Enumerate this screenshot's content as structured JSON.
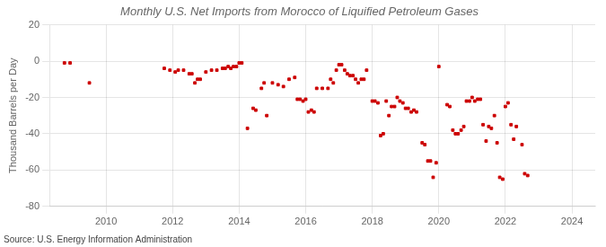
{
  "chart_data": {
    "type": "scatter",
    "title": "Monthly U.S. Net Imports from Morocco of Liquified Petroleum Gases",
    "ylabel": "Thousand Barrels per Day",
    "annotation": "Source: U.S. Energy Information Administration",
    "color": "#cc0000",
    "marker": "square",
    "grid": true,
    "xlim": [
      2008.3,
      2024.7
    ],
    "xticks": [
      2010,
      2012,
      2014,
      2016,
      2018,
      2020,
      2022,
      2024
    ],
    "ylim": [
      -80,
      20
    ],
    "yticks": [
      -80,
      -60,
      -40,
      -20,
      0,
      20
    ],
    "x": [
      2008.75,
      2008.92,
      2009.5,
      2011.75,
      2011.92,
      2012.08,
      2012.17,
      2012.33,
      2012.5,
      2012.58,
      2012.67,
      2012.75,
      2012.83,
      2013.0,
      2013.17,
      2013.33,
      2013.5,
      2013.58,
      2013.67,
      2013.75,
      2013.83,
      2013.92,
      2014.0,
      2014.08,
      2014.25,
      2014.42,
      2014.5,
      2014.67,
      2014.75,
      2014.83,
      2015.0,
      2015.17,
      2015.33,
      2015.5,
      2015.67,
      2015.75,
      2015.83,
      2015.92,
      2016.0,
      2016.08,
      2016.17,
      2016.25,
      2016.33,
      2016.5,
      2016.67,
      2016.75,
      2016.83,
      2016.92,
      2017.0,
      2017.08,
      2017.17,
      2017.25,
      2017.33,
      2017.42,
      2017.5,
      2017.58,
      2017.67,
      2017.75,
      2017.83,
      2018.0,
      2018.08,
      2018.17,
      2018.25,
      2018.33,
      2018.42,
      2018.5,
      2018.58,
      2018.67,
      2018.75,
      2018.83,
      2018.92,
      2019.0,
      2019.08,
      2019.17,
      2019.25,
      2019.33,
      2019.5,
      2019.58,
      2019.67,
      2019.75,
      2019.83,
      2019.92,
      2020.0,
      2020.25,
      2020.33,
      2020.42,
      2020.5,
      2020.58,
      2020.67,
      2020.75,
      2020.83,
      2020.92,
      2021.0,
      2021.08,
      2021.17,
      2021.25,
      2021.33,
      2021.42,
      2021.5,
      2021.58,
      2021.67,
      2021.75,
      2021.83,
      2021.92,
      2022.0,
      2022.08,
      2022.17,
      2022.25,
      2022.33,
      2022.5,
      2022.58,
      2022.67
    ],
    "values": [
      -1,
      -1,
      -12,
      -4,
      -5,
      -6,
      -5,
      -5,
      -7,
      -7,
      -12,
      -10,
      -10,
      -6,
      -5,
      -5,
      -4,
      -4,
      -3,
      -4,
      -3,
      -3,
      -1,
      -1,
      -37,
      -26,
      -27,
      -15,
      -12,
      -30,
      -12,
      -13,
      -14,
      -10,
      -9,
      -21,
      -21,
      -22,
      -21,
      -28,
      -27,
      -28,
      -15,
      -15,
      -15,
      -10,
      -12,
      -5,
      -2,
      -2,
      -5,
      -7,
      -8,
      -8,
      -10,
      -12,
      -10,
      -10,
      -5,
      -22,
      -22,
      -23,
      -41,
      -40,
      -22,
      -30,
      -25,
      -25,
      -20,
      -22,
      -23,
      -26,
      -26,
      -28,
      -27,
      -28,
      -45,
      -46,
      -55,
      -55,
      -64,
      -56,
      -3,
      -24,
      -25,
      -38,
      -40,
      -40,
      -38,
      -36,
      -22,
      -22,
      -20,
      -22,
      -21,
      -21,
      -35,
      -44,
      -36,
      -37,
      -30,
      -45,
      -64,
      -65,
      -25,
      -23,
      -35,
      -43,
      -36,
      -46,
      -62,
      -63
    ]
  }
}
